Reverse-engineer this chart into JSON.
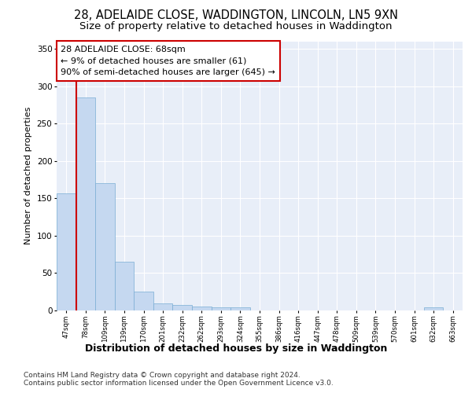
{
  "title1": "28, ADELAIDE CLOSE, WADDINGTON, LINCOLN, LN5 9XN",
  "title2": "Size of property relative to detached houses in Waddington",
  "xlabel": "Distribution of detached houses by size in Waddington",
  "ylabel": "Number of detached properties",
  "footnote1": "Contains HM Land Registry data © Crown copyright and database right 2024.",
  "footnote2": "Contains public sector information licensed under the Open Government Licence v3.0.",
  "bar_labels": [
    "47sqm",
    "78sqm",
    "109sqm",
    "139sqm",
    "170sqm",
    "201sqm",
    "232sqm",
    "262sqm",
    "293sqm",
    "324sqm",
    "355sqm",
    "386sqm",
    "416sqm",
    "447sqm",
    "478sqm",
    "509sqm",
    "539sqm",
    "570sqm",
    "601sqm",
    "632sqm",
    "663sqm"
  ],
  "bar_values": [
    157,
    285,
    170,
    65,
    25,
    9,
    7,
    5,
    4,
    4,
    0,
    0,
    0,
    0,
    0,
    0,
    0,
    0,
    0,
    4,
    0
  ],
  "bar_color": "#c5d8f0",
  "bar_edge_color": "#7aadd4",
  "annotation_text": "28 ADELAIDE CLOSE: 68sqm\n← 9% of detached houses are smaller (61)\n90% of semi-detached houses are larger (645) →",
  "annotation_box_edge": "#cc0000",
  "vline_color": "#cc0000",
  "ylim": [
    0,
    360
  ],
  "yticks": [
    0,
    50,
    100,
    150,
    200,
    250,
    300,
    350
  ],
  "bg_color": "#e8eef8",
  "grid_color": "#ffffff",
  "title1_fontsize": 10.5,
  "title2_fontsize": 9.5,
  "annotation_fontsize": 8,
  "ylabel_fontsize": 8,
  "xlabel_fontsize": 9,
  "footnote_fontsize": 6.5
}
